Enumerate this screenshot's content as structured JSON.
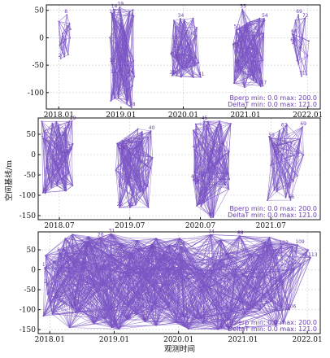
{
  "figure": {
    "xlabel": "观测时间",
    "ylabel": "空间基线/m",
    "colors": {
      "network": "#7b55c4",
      "labels": "#6a3fb0",
      "grid": "#c8c8c8",
      "axis": "#111111"
    }
  },
  "chart_data": [
    {
      "type": "scatter",
      "panel": "a",
      "xlabel": "",
      "ylabel": "",
      "ylim": [
        -130,
        60
      ],
      "yticks": [
        -100,
        -50,
        0,
        50
      ],
      "xticks": [
        {
          "label": "2018.01",
          "value": 2018.0
        },
        {
          "label": "2019.01",
          "value": 2019.0
        },
        {
          "label": "2020.01",
          "value": 2020.0
        },
        {
          "label": "2021.01",
          "value": 2021.0
        },
        {
          "label": "2022.01",
          "value": 2022.0
        }
      ],
      "xlim": [
        2017.8,
        2022.2
      ],
      "grid": true,
      "annotation": {
        "line1": "Bperp  min:  0.0  max: 200.0",
        "line2": "DeltaT  min:  0.0  max: 121.0"
      },
      "clusters": [
        {
          "x": [
            2018.0,
            2018.22
          ],
          "y": [
            -40,
            45
          ],
          "n": 14,
          "labels": [
            {
              "text": "8",
              "x": 2018.13,
              "y": 42
            },
            {
              "text": "2",
              "x": 2018.03,
              "y": -38
            }
          ]
        },
        {
          "x": [
            2018.82,
            2019.25
          ],
          "y": [
            -120,
            55
          ],
          "n": 28,
          "labels": [
            {
              "text": "14",
              "x": 2018.88,
              "y": 52
            },
            {
              "text": "19",
              "x": 2018.98,
              "y": 56
            },
            {
              "text": "13",
              "x": 2018.85,
              "y": 42
            },
            {
              "text": "11",
              "x": 2018.85,
              "y": -47
            },
            {
              "text": "12",
              "x": 2018.87,
              "y": -68
            },
            {
              "text": "28",
              "x": 2019.17,
              "y": -127
            },
            {
              "text": "26",
              "x": 2019.14,
              "y": -68
            }
          ]
        },
        {
          "x": [
            2019.8,
            2020.3
          ],
          "y": [
            -75,
            40
          ],
          "n": 30,
          "labels": [
            {
              "text": "34",
              "x": 2019.95,
              "y": 35
            },
            {
              "text": "33",
              "x": 2019.88,
              "y": -25
            },
            {
              "text": "31",
              "x": 2019.9,
              "y": -40
            },
            {
              "text": "29",
              "x": 2019.82,
              "y": -69
            },
            {
              "text": "30",
              "x": 2019.85,
              "y": -5
            },
            {
              "text": "41",
              "x": 2020.28,
              "y": -72
            }
          ]
        },
        {
          "x": [
            2020.8,
            2021.35
          ],
          "y": [
            -95,
            55
          ],
          "n": 32,
          "labels": [
            {
              "text": "55",
              "x": 2020.95,
              "y": 52
            },
            {
              "text": "50",
              "x": 2020.85,
              "y": 15
            },
            {
              "text": "45",
              "x": 2020.84,
              "y": -18
            },
            {
              "text": "48",
              "x": 2020.86,
              "y": -50
            },
            {
              "text": "54",
              "x": 2021.3,
              "y": 35
            },
            {
              "text": "57",
              "x": 2021.28,
              "y": -88
            }
          ]
        },
        {
          "x": [
            2021.75,
            2022.05
          ],
          "y": [
            -75,
            45
          ],
          "n": 12,
          "labels": [
            {
              "text": "69",
              "x": 2021.85,
              "y": 42
            },
            {
              "text": "66",
              "x": 2021.77,
              "y": 6
            },
            {
              "text": "67",
              "x": 2021.76,
              "y": -10
            },
            {
              "text": "71",
              "x": 2021.9,
              "y": -70
            },
            {
              "text": "72",
              "x": 2021.95,
              "y": 35
            }
          ]
        }
      ]
    },
    {
      "type": "scatter",
      "panel": "b",
      "xlabel": "",
      "ylabel": "",
      "ylim": [
        -160,
        90
      ],
      "yticks": [
        -150,
        -100,
        -50,
        0,
        50
      ],
      "xticks": [
        {
          "label": "2018.07",
          "value": 2018.5
        },
        {
          "label": "2019.07",
          "value": 2019.5
        },
        {
          "label": "2020.07",
          "value": 2020.5
        },
        {
          "label": "2021.07",
          "value": 2021.5
        }
      ],
      "xlim": [
        2018.2,
        2022.2
      ],
      "grid": true,
      "annotation": {
        "line1": "Bperp  min:  0.0  max: 200.0",
        "line2": "DeltaT  min:  0.0  max: 121.0"
      },
      "clusters": [
        {
          "x": [
            2018.25,
            2018.72
          ],
          "y": [
            -100,
            85
          ],
          "n": 28,
          "labels": [
            {
              "text": "1",
              "x": 2018.27,
              "y": 40
            },
            {
              "text": "19",
              "x": 2018.68,
              "y": 82
            },
            {
              "text": "17",
              "x": 2018.6,
              "y": 60
            },
            {
              "text": "11",
              "x": 2018.52,
              "y": 42
            },
            {
              "text": "7",
              "x": 2018.48,
              "y": 22
            },
            {
              "text": "4",
              "x": 2018.3,
              "y": -95
            },
            {
              "text": "10",
              "x": 2018.58,
              "y": 0
            }
          ]
        },
        {
          "x": [
            2019.3,
            2019.85
          ],
          "y": [
            -130,
            65
          ],
          "n": 30,
          "labels": [
            {
              "text": "40",
              "x": 2019.8,
              "y": 58
            },
            {
              "text": "36",
              "x": 2019.45,
              "y": 28
            },
            {
              "text": "33",
              "x": 2019.52,
              "y": 30
            },
            {
              "text": "34",
              "x": 2019.6,
              "y": 30
            },
            {
              "text": "22",
              "x": 2019.35,
              "y": -130
            },
            {
              "text": "31",
              "x": 2019.5,
              "y": -130
            },
            {
              "text": "28",
              "x": 2019.38,
              "y": 10
            }
          ]
        },
        {
          "x": [
            2020.4,
            2020.98
          ],
          "y": [
            -155,
            85
          ],
          "n": 34,
          "labels": [
            {
              "text": "45",
              "x": 2020.55,
              "y": 82
            },
            {
              "text": "43",
              "x": 2020.42,
              "y": 12
            },
            {
              "text": "41",
              "x": 2020.4,
              "y": -62
            },
            {
              "text": "42",
              "x": 2020.43,
              "y": -72
            },
            {
              "text": "51",
              "x": 2020.65,
              "y": -155
            },
            {
              "text": "54",
              "x": 2020.78,
              "y": 20
            }
          ]
        },
        {
          "x": [
            2021.45,
            2022.0
          ],
          "y": [
            -115,
            75
          ],
          "n": 22,
          "labels": [
            {
              "text": "62",
              "x": 2021.68,
              "y": 65
            },
            {
              "text": "69",
              "x": 2021.95,
              "y": 68
            },
            {
              "text": "59",
              "x": 2021.5,
              "y": 40
            },
            {
              "text": "60",
              "x": 2021.55,
              "y": 18
            },
            {
              "text": "61",
              "x": 2021.58,
              "y": 0
            },
            {
              "text": "66",
              "x": 2021.78,
              "y": -112
            }
          ]
        }
      ]
    },
    {
      "type": "scatter",
      "panel": "c",
      "xlabel": "",
      "ylabel": "",
      "ylim": [
        -160,
        95
      ],
      "yticks": [
        -150,
        -100,
        -50,
        0,
        50
      ],
      "xticks": [
        {
          "label": "2018.01",
          "value": 2018.0
        },
        {
          "label": "2019.01",
          "value": 2019.0
        },
        {
          "label": "2020.01",
          "value": 2020.0
        },
        {
          "label": "2021.01",
          "value": 2021.0
        },
        {
          "label": "2022.01",
          "value": 2022.0
        }
      ],
      "xlim": [
        2017.82,
        2022.2
      ],
      "grid": true,
      "annotation": {
        "line1": "Bperp  min:  0.0  max: 200.0",
        "line2": "DeltaT  min:  0.0  max: 121.0"
      },
      "clusters": [
        {
          "x": [
            2017.9,
            2022.1
          ],
          "y": [
            -150,
            90
          ],
          "n": 120,
          "labels": [
            {
              "text": "1",
              "x": 2017.92,
              "y": 5
            },
            {
              "text": "8",
              "x": 2018.15,
              "y": 42
            },
            {
              "text": "2",
              "x": 2017.95,
              "y": -38
            },
            {
              "text": "18",
              "x": 2018.55,
              "y": 48
            },
            {
              "text": "26",
              "x": 2018.78,
              "y": 80
            },
            {
              "text": "31",
              "x": 2018.95,
              "y": 90
            },
            {
              "text": "13",
              "x": 2018.35,
              "y": -95
            },
            {
              "text": "40",
              "x": 2019.2,
              "y": -125
            },
            {
              "text": "45",
              "x": 2019.6,
              "y": 48
            },
            {
              "text": "52",
              "x": 2019.78,
              "y": 32
            },
            {
              "text": "43",
              "x": 2019.48,
              "y": -130
            },
            {
              "text": "58",
              "x": 2020.05,
              "y": 58
            },
            {
              "text": "74",
              "x": 2020.5,
              "y": 88
            },
            {
              "text": "88",
              "x": 2020.95,
              "y": 85
            },
            {
              "text": "83",
              "x": 2020.78,
              "y": -150
            },
            {
              "text": "102",
              "x": 2021.6,
              "y": 60
            },
            {
              "text": "109",
              "x": 2021.85,
              "y": 62
            },
            {
              "text": "106",
              "x": 2021.72,
              "y": -100
            },
            {
              "text": "113",
              "x": 2022.05,
              "y": 30
            }
          ]
        }
      ]
    }
  ]
}
